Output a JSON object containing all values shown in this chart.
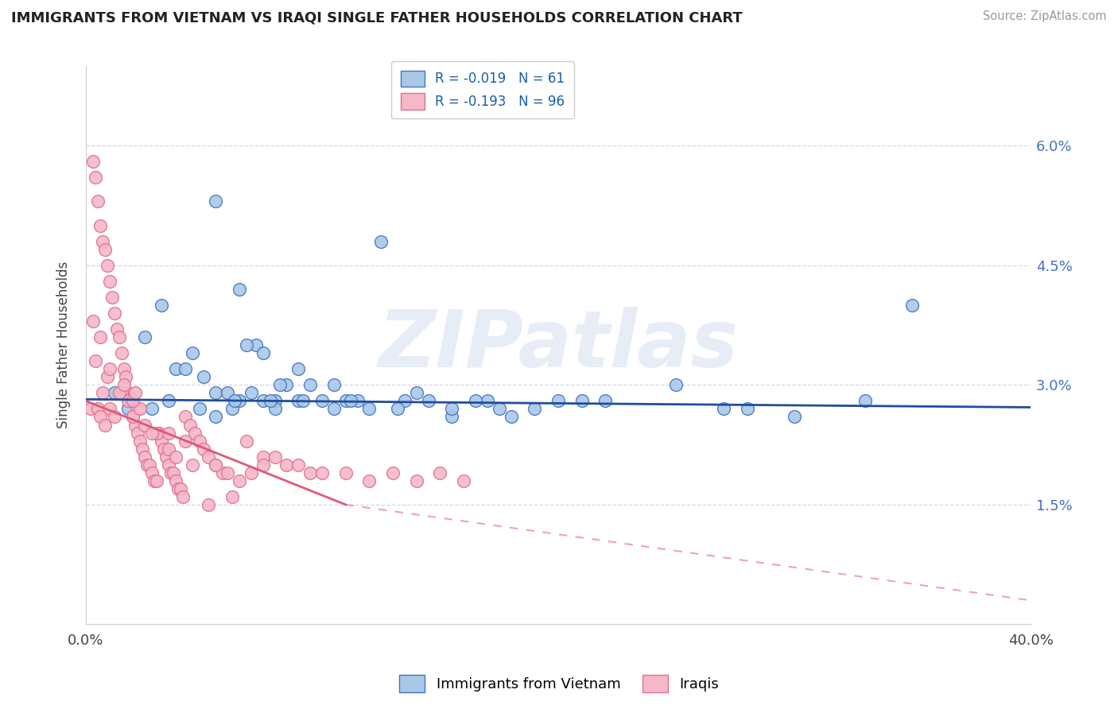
{
  "title": "IMMIGRANTS FROM VIETNAM VS IRAQI SINGLE FATHER HOUSEHOLDS CORRELATION CHART",
  "source": "Source: ZipAtlas.com",
  "ylabel": "Single Father Households",
  "yticks_labels": [
    "1.5%",
    "3.0%",
    "4.5%",
    "6.0%"
  ],
  "ytick_vals": [
    1.5,
    3.0,
    4.5,
    6.0
  ],
  "xmin": 0.0,
  "xmax": 40.0,
  "ymin": 0.0,
  "ymax": 7.0,
  "vietnam_color": "#a8c8e8",
  "vietnam_edge": "#4472c4",
  "iraqi_color": "#f4b8c8",
  "iraqi_edge": "#e07090",
  "trendline_vietnam_color": "#1f4e9c",
  "trendline_iraqi_color": "#e05878",
  "watermark": "ZIPatlas",
  "background_color": "#ffffff",
  "grid_color": "#d0d8e8",
  "series_vietnam_x": [
    1.2,
    1.8,
    5.5,
    2.5,
    6.5,
    3.8,
    4.5,
    7.2,
    5.0,
    8.5,
    6.8,
    10.5,
    12.5,
    9.0,
    7.5,
    4.2,
    3.2,
    8.0,
    11.0,
    14.0,
    5.5,
    7.0,
    9.5,
    6.2,
    8.2,
    10.0,
    17.0,
    25.0,
    30.0,
    35.0,
    20.0,
    15.5,
    12.0,
    6.0,
    4.8,
    3.5,
    2.8,
    11.5,
    13.5,
    16.5,
    19.0,
    22.0,
    27.0,
    5.5,
    6.5,
    8.0,
    9.0,
    10.5,
    7.5,
    14.5,
    18.0,
    6.3,
    7.8,
    9.2,
    11.2,
    13.2,
    15.5,
    17.5,
    21.0,
    28.0,
    33.0
  ],
  "series_vietnam_y": [
    2.9,
    2.7,
    5.3,
    3.6,
    4.2,
    3.2,
    3.4,
    3.5,
    3.1,
    3.0,
    3.5,
    3.0,
    4.8,
    3.2,
    3.4,
    3.2,
    4.0,
    2.8,
    2.8,
    2.9,
    2.9,
    2.9,
    3.0,
    2.7,
    3.0,
    2.8,
    2.8,
    3.0,
    2.6,
    4.0,
    2.8,
    2.6,
    2.7,
    2.9,
    2.7,
    2.8,
    2.7,
    2.8,
    2.8,
    2.8,
    2.7,
    2.8,
    2.7,
    2.6,
    2.8,
    2.7,
    2.8,
    2.7,
    2.8,
    2.8,
    2.6,
    2.8,
    2.8,
    2.8,
    2.8,
    2.7,
    2.7,
    2.7,
    2.8,
    2.7,
    2.8
  ],
  "series_iraqi_x": [
    0.2,
    0.3,
    0.4,
    0.5,
    0.6,
    0.7,
    0.8,
    0.9,
    1.0,
    1.1,
    1.2,
    1.3,
    1.4,
    1.5,
    1.6,
    1.7,
    1.8,
    1.9,
    2.0,
    2.1,
    2.2,
    2.3,
    2.4,
    2.5,
    2.6,
    2.7,
    2.8,
    2.9,
    3.0,
    3.1,
    3.2,
    3.3,
    3.4,
    3.5,
    3.6,
    3.7,
    3.8,
    3.9,
    4.0,
    4.1,
    4.2,
    4.4,
    4.6,
    4.8,
    5.0,
    5.2,
    5.5,
    5.8,
    6.0,
    6.5,
    7.0,
    7.5,
    8.0,
    8.5,
    9.0,
    9.5,
    10.0,
    11.0,
    12.0,
    13.0,
    14.0,
    15.0,
    16.0,
    4.5,
    5.5,
    7.5,
    6.8,
    2.2,
    1.5,
    3.5,
    0.5,
    0.6,
    0.8,
    1.0,
    1.2,
    2.0,
    2.5,
    3.0,
    0.7,
    1.8,
    2.3,
    0.4,
    0.9,
    1.4,
    0.3,
    0.6,
    2.8,
    3.5,
    2.0,
    1.6,
    4.2,
    3.8,
    2.1,
    1.0,
    5.2,
    6.2
  ],
  "series_iraqi_y": [
    2.7,
    5.8,
    5.6,
    5.3,
    5.0,
    4.8,
    4.7,
    4.5,
    4.3,
    4.1,
    3.9,
    3.7,
    3.6,
    3.4,
    3.2,
    3.1,
    2.9,
    2.8,
    2.6,
    2.5,
    2.4,
    2.3,
    2.2,
    2.1,
    2.0,
    2.0,
    1.9,
    1.8,
    1.8,
    2.4,
    2.3,
    2.2,
    2.1,
    2.0,
    1.9,
    1.9,
    1.8,
    1.7,
    1.7,
    1.6,
    2.6,
    2.5,
    2.4,
    2.3,
    2.2,
    2.1,
    2.0,
    1.9,
    1.9,
    1.8,
    1.9,
    2.1,
    2.1,
    2.0,
    2.0,
    1.9,
    1.9,
    1.9,
    1.8,
    1.9,
    1.8,
    1.9,
    1.8,
    2.0,
    2.0,
    2.0,
    2.3,
    2.7,
    2.9,
    2.4,
    2.7,
    2.6,
    2.5,
    2.7,
    2.6,
    2.6,
    2.5,
    2.4,
    2.9,
    2.8,
    2.7,
    3.3,
    3.1,
    2.9,
    3.8,
    3.6,
    2.4,
    2.2,
    2.8,
    3.0,
    2.3,
    2.1,
    2.9,
    3.2,
    1.5,
    1.6
  ],
  "trendline_viet_x0": 0.0,
  "trendline_viet_x1": 40.0,
  "trendline_viet_y0": 2.82,
  "trendline_viet_y1": 2.72,
  "trendline_iraqi_x0": 0.0,
  "trendline_iraqi_x1_solid": 11.0,
  "trendline_iraqi_x1_dashed": 40.0,
  "trendline_iraqi_y0": 2.8,
  "trendline_iraqi_y1": 1.5,
  "trendline_iraqi_y_end": 0.3
}
